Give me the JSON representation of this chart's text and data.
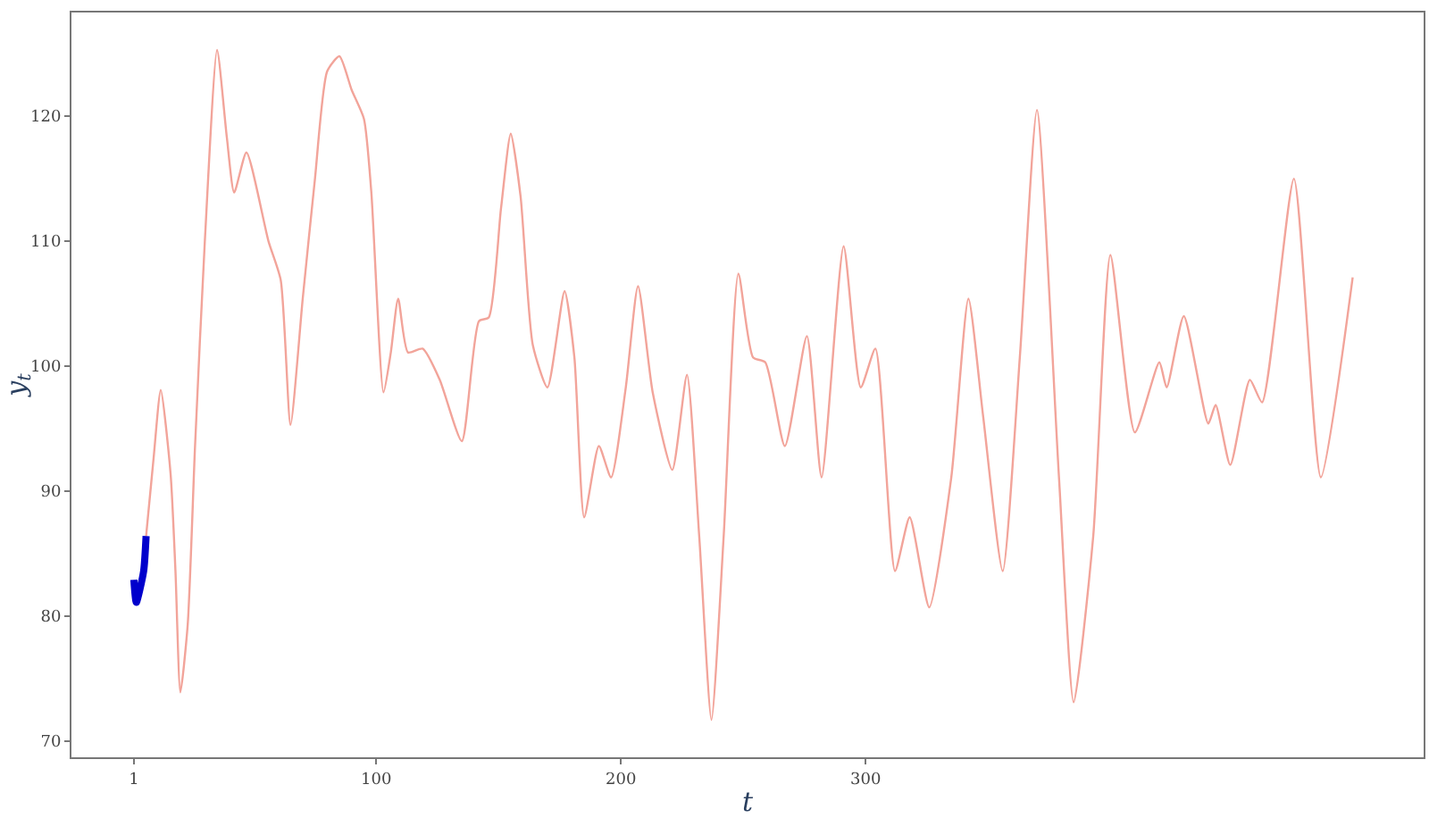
{
  "chart_data": {
    "type": "line",
    "xlabel": "t",
    "ylabel": "y$_{t}$",
    "xlim": [
      -24.5,
      528
    ],
    "xticks": [
      1,
      100,
      200,
      300
    ],
    "ylim": [
      68.7,
      128.3
    ],
    "yticks": [
      70,
      80,
      90,
      100,
      110,
      120
    ],
    "line_style": "solid",
    "marker": "none",
    "series": [
      {
        "color": "#f2a49a",
        "x": [
          6,
          9,
          12,
          16,
          18,
          20,
          23,
          26,
          30,
          35,
          39,
          42,
          47,
          56,
          61,
          65,
          70,
          75,
          80,
          85,
          90,
          95,
          98,
          103,
          106,
          109,
          113,
          119,
          126,
          135,
          142,
          146,
          151,
          155,
          159,
          164,
          170,
          177,
          181,
          185,
          191,
          196,
          202,
          207,
          213,
          221,
          227,
          232,
          237,
          242,
          248,
          254,
          259,
          267,
          276,
          282,
          291,
          298,
          304,
          312,
          318,
          326,
          335,
          342,
          348,
          356,
          363,
          370,
          379,
          385,
          393,
          400,
          410,
          420,
          423,
          430,
          440,
          443,
          449,
          457,
          462,
          475,
          486,
          499
        ],
        "values": [
          86.4,
          92.5,
          98.1,
          91.4,
          83.6,
          73.9,
          79.3,
          93.6,
          110,
          125.3,
          118.3,
          113.9,
          117.1,
          110,
          106.9,
          95.3,
          105.4,
          115,
          123.6,
          124.8,
          122.1,
          119.8,
          114,
          97.9,
          101.1,
          105.4,
          101.1,
          101.4,
          98.9,
          94,
          103.6,
          103.9,
          112.6,
          118.6,
          113.6,
          101.7,
          98.3,
          106,
          100.7,
          87.9,
          93.6,
          91.1,
          98.3,
          106.4,
          97.9,
          91.7,
          99.3,
          86.4,
          71.7,
          86.4,
          107.4,
          100.7,
          100.3,
          93.6,
          102.4,
          91.1,
          109.6,
          98.3,
          101.4,
          83.6,
          87.9,
          80.7,
          91.1,
          105.4,
          96,
          83.6,
          100.7,
          120.5,
          91.1,
          73.1,
          86.4,
          108.9,
          94.7,
          100.3,
          98.3,
          104,
          95.4,
          96.9,
          92.1,
          98.9,
          97.1,
          115,
          91.1,
          107.1
        ]
      },
      {
        "color": "#0000cc",
        "x": [
          1,
          2,
          5,
          6
        ],
        "values": [
          82.9,
          81.1,
          83.6,
          86.4
        ]
      }
    ]
  }
}
